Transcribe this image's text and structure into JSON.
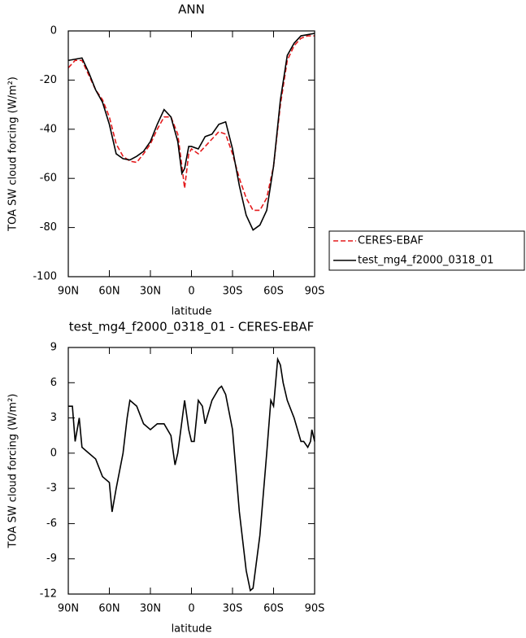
{
  "chart_data": [
    {
      "type": "line",
      "title": "ANN",
      "xlabel": "latitude",
      "ylabel": "TOA SW cloud forcing (W/m²)",
      "x": [
        90,
        85,
        80,
        75,
        70,
        65,
        60,
        55,
        50,
        45,
        40,
        35,
        30,
        25,
        20,
        15,
        10,
        7,
        5,
        2,
        0,
        -5,
        -10,
        -15,
        -20,
        -25,
        -30,
        -35,
        -40,
        -45,
        -50,
        -55,
        -60,
        -65,
        -70,
        -75,
        -80,
        -85,
        -90
      ],
      "series": [
        {
          "name": "CERES-EBAF",
          "color": "#e41a1c",
          "line_style": "dashed",
          "values": [
            -15,
            -12,
            -12,
            -18,
            -24,
            -28,
            -35,
            -46,
            -51,
            -53,
            -53.5,
            -50,
            -46,
            -40,
            -35,
            -35,
            -42,
            -55,
            -64,
            -50,
            -48,
            -50,
            -47,
            -44,
            -41,
            -42,
            -50,
            -60,
            -68,
            -73,
            -73,
            -68,
            -55,
            -30,
            -12,
            -6,
            -3,
            -2,
            -2
          ]
        },
        {
          "name": "test_mg4_f2000_0318_01",
          "color": "#000000",
          "line_style": "solid",
          "values": [
            -12,
            -11.5,
            -11,
            -17,
            -24,
            -29,
            -38,
            -50,
            -52,
            -52.5,
            -51,
            -49,
            -45,
            -38,
            -32,
            -35,
            -45,
            -58,
            -56,
            -47,
            -47,
            -48,
            -43,
            -42,
            -38,
            -37,
            -48,
            -63,
            -75,
            -81,
            -79,
            -73,
            -55,
            -28,
            -10,
            -5,
            -2,
            -1.5,
            -1
          ]
        }
      ],
      "xlim": [
        90,
        -90
      ],
      "xticks": [
        {
          "value": 90,
          "label": "90N"
        },
        {
          "value": 60,
          "label": "60N"
        },
        {
          "value": 30,
          "label": "30N"
        },
        0,
        {
          "value": -30,
          "label": "30S"
        },
        {
          "value": -60,
          "label": "60S"
        },
        {
          "value": -90,
          "label": "90S"
        }
      ],
      "ylim": [
        -100,
        0
      ],
      "yticks": [
        -100,
        -80,
        -60,
        -40,
        -20,
        0
      ],
      "legend": true
    },
    {
      "type": "line",
      "title": "test_mg4_f2000_0318_01 - CERES-EBAF",
      "xlabel": "latitude",
      "ylabel": "TOA SW cloud forcing (W/m²)",
      "x": [
        90,
        87,
        85,
        82,
        80,
        75,
        70,
        65,
        60,
        58,
        55,
        50,
        47,
        45,
        40,
        35,
        30,
        25,
        20,
        15,
        12,
        10,
        5,
        2,
        0,
        -2,
        -5,
        -8,
        -10,
        -15,
        -20,
        -22,
        -25,
        -30,
        -35,
        -40,
        -43,
        -45,
        -50,
        -55,
        -58,
        -60,
        -63,
        -65,
        -67,
        -70,
        -75,
        -80,
        -82,
        -85,
        -87,
        -88,
        -90
      ],
      "series": [
        {
          "color": "#000000",
          "line_style": "solid",
          "values": [
            4,
            4,
            1,
            3,
            0.5,
            0,
            -0.5,
            -2,
            -2.5,
            -5,
            -3,
            0,
            3,
            4.5,
            4,
            2.5,
            2,
            2.5,
            2.5,
            1.5,
            -1,
            0,
            4.5,
            2,
            1,
            1,
            4.5,
            4,
            2.5,
            4.5,
            5.5,
            5.7,
            5,
            2,
            -5,
            -10,
            -11.7,
            -11.5,
            -7,
            0,
            4.5,
            4,
            8,
            7.5,
            6,
            4.5,
            3,
            1,
            1,
            0.5,
            1,
            2,
            1
          ]
        }
      ],
      "xlim": [
        90,
        -90
      ],
      "xticks": [
        {
          "value": 90,
          "label": "90N"
        },
        {
          "value": 60,
          "label": "60N"
        },
        {
          "value": 30,
          "label": "30N"
        },
        0,
        {
          "value": -30,
          "label": "30S"
        },
        {
          "value": -60,
          "label": "60S"
        },
        {
          "value": -90,
          "label": "90S"
        }
      ],
      "ylim": [
        -12,
        9
      ],
      "yticks": [
        -12,
        -9,
        -6,
        -3,
        0,
        3,
        6,
        9
      ],
      "legend": false
    }
  ]
}
